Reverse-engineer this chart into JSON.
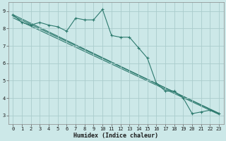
{
  "title": "",
  "xlabel": "Humidex (Indice chaleur)",
  "ylabel": "",
  "background_color": "#cce8e8",
  "grid_color": "#aacccc",
  "line_color": "#2d7a6e",
  "xlim": [
    -0.5,
    23.5
  ],
  "ylim": [
    2.5,
    9.5
  ],
  "xticks": [
    0,
    1,
    2,
    3,
    4,
    5,
    6,
    7,
    8,
    9,
    10,
    11,
    12,
    13,
    14,
    15,
    16,
    17,
    18,
    19,
    20,
    21,
    22,
    23
  ],
  "yticks": [
    3,
    4,
    5,
    6,
    7,
    8,
    9
  ],
  "line1_x": [
    0,
    1,
    2,
    3,
    4,
    5,
    6,
    7,
    8,
    9,
    10,
    11,
    12,
    13,
    14,
    15,
    16,
    17,
    18,
    19,
    20,
    21,
    22,
    23
  ],
  "line1_y": [
    8.8,
    8.35,
    8.2,
    8.35,
    8.2,
    8.1,
    7.85,
    8.6,
    8.5,
    8.5,
    9.1,
    7.6,
    7.5,
    7.5,
    6.9,
    6.3,
    4.85,
    4.4,
    4.4,
    4.0,
    3.1,
    3.2,
    3.3,
    3.1
  ],
  "line2_x": [
    0,
    23
  ],
  "line2_y": [
    8.8,
    3.1
  ],
  "line3_x": [
    0,
    23
  ],
  "line3_y": [
    8.72,
    3.12
  ],
  "line4_x": [
    0,
    23
  ],
  "line4_y": [
    8.62,
    3.05
  ],
  "tick_fontsize": 5,
  "xlabel_fontsize": 6,
  "xlabel_bold": true
}
